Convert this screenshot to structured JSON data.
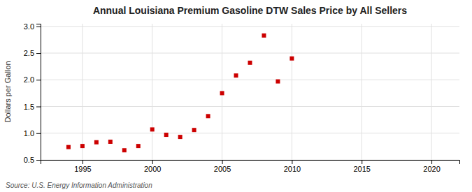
{
  "chart_data": {
    "type": "scatter",
    "title": "Annual Louisiana Premium Gasoline DTW Sales Price by All Sellers",
    "ylabel": "Dollars per Gallon",
    "source": "Source: U.S. Energy Information Administration",
    "x": [
      1994,
      1995,
      1996,
      1997,
      1998,
      1999,
      2000,
      2001,
      2002,
      2003,
      2004,
      2005,
      2006,
      2007,
      2008,
      2009,
      2010
    ],
    "values": [
      0.74,
      0.76,
      0.83,
      0.84,
      0.68,
      0.76,
      1.07,
      0.97,
      0.93,
      1.06,
      1.32,
      1.75,
      2.08,
      2.32,
      2.83,
      1.97,
      2.4
    ],
    "color": "#cc0000",
    "marker": "square",
    "xlim": [
      1992,
      2022
    ],
    "xticks": [
      1995,
      2000,
      2005,
      2010,
      2015,
      2020
    ],
    "ylim": [
      0.5,
      3.05
    ],
    "yticks": [
      0.5,
      {
        "value": 1,
        "label": "1.0"
      },
      1.5,
      {
        "value": 2,
        "label": "2.0"
      },
      2.5,
      {
        "value": 3,
        "label": "3.0"
      }
    ],
    "grid": true
  }
}
